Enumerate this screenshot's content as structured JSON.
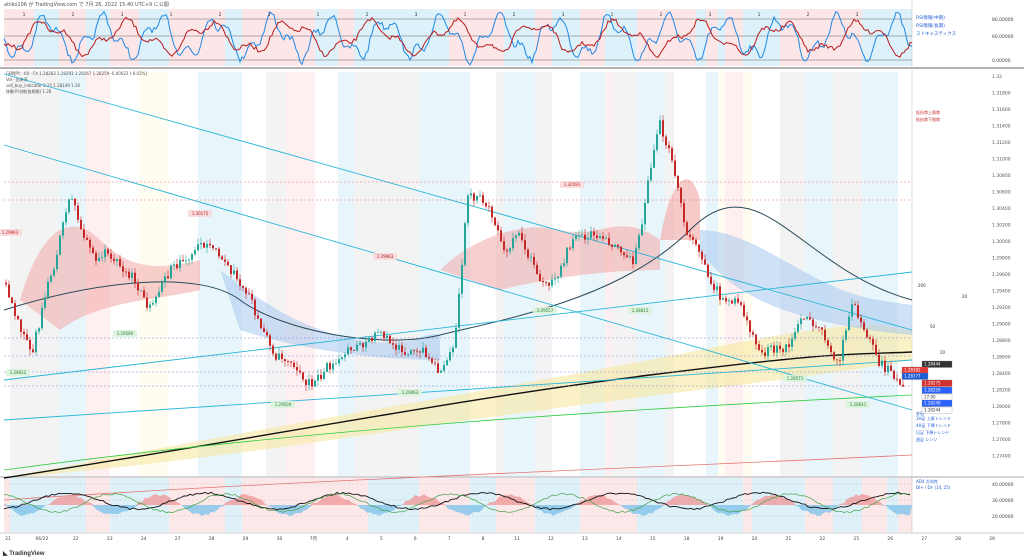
{
  "header": {
    "author_line": "ahiko106 が TradingView.com で 7月 26, 2022 15:40 UTC+9 に公開"
  },
  "footer": {
    "logo_text": "TradingView"
  },
  "colors": {
    "candle_up": "#26a69a",
    "candle_down": "#c62828",
    "rsi_red": "#b71c1c",
    "rsi_blue": "#1e88e5",
    "bg_pink": "#fde2e4",
    "bg_blue": "#d6eef8",
    "bg_grey": "#e9e9e9",
    "bg_yellow": "#fffbe6",
    "ma_black": "#111111",
    "trend_cyan": "#29b6d8",
    "price_box_red": "#e53935",
    "price_box_blue": "#1e5bd6"
  },
  "top_panel": {
    "right_values": [
      "80.00000",
      "60.00000",
      "0.00000"
    ],
    "legend": [
      "RSI情報(中期)",
      "RSI情報(長期)",
      "ストキャスティクス"
    ],
    "top_numbers": [
      "1",
      "2",
      "3",
      "1",
      "2",
      "3",
      "1",
      "2",
      "3",
      "1",
      "2",
      "3",
      "1",
      "2",
      "3",
      "1",
      "2",
      "3"
    ]
  },
  "main_panel": {
    "legend_lines": [
      "GBPJPY · 60 · FX  1.28283  1.28293  1.28167  1.28259  -0.00023 (-0.02%)",
      "Vol · 出来高",
      "sell_buy_indicator  0.15  1.28149  1.26",
      "移動平均線(各期間)  1.28"
    ],
    "price_axis": [
      "1.32",
      "1.31800",
      "1.31600",
      "1.31400",
      "1.31200",
      "1.31000",
      "1.30800",
      "1.30600",
      "1.30400",
      "1.30200",
      "1.30000",
      "1.29800",
      "1.29600",
      "1.29400",
      "1.29200",
      "1.29000",
      "1.28800",
      "1.28600",
      "1.28400",
      "1.28200",
      "1.28000",
      "1.27800",
      "1.27600",
      "1.27400"
    ],
    "price_labels": [
      {
        "text": "1.29963"
      },
      {
        "text": "1.30175"
      },
      {
        "text": "1.29963"
      },
      {
        "text": "1.30591"
      },
      {
        "text": "1.29580"
      },
      {
        "text": "1.29557"
      },
      {
        "text": "1.29504"
      },
      {
        "text": "1.29063"
      },
      {
        "text": "1.28815"
      },
      {
        "text": "1.28571"
      },
      {
        "text": "1.28641"
      },
      {
        "text": "1.28022"
      }
    ],
    "right_boxes": [
      {
        "text": "1.28444",
        "kind": "dark"
      },
      {
        "text": "1.28382",
        "kind": "red"
      },
      {
        "text": "1.28377",
        "kind": "blue"
      },
      {
        "text": "1.28275",
        "kind": "red2"
      },
      {
        "text": "1.28259",
        "kind": "blue2"
      },
      {
        "text": "17:00",
        "kind": "white"
      },
      {
        "text": "1.28249",
        "kind": "blue2"
      },
      {
        "text": "1.28244",
        "kind": "white"
      }
    ],
    "right_notes": [
      "抵抗帯上限帯",
      "抵抗帯下限帯",
      "1H足 上昇トレンド",
      "4H足 下降トレンド",
      "日足 下降トレンド",
      "週足 レンジ"
    ],
    "channel_labels": [
      "200",
      "20",
      "50",
      "20",
      "200"
    ],
    "extra_label": "安値"
  },
  "bottom_panel": {
    "right_values": [
      "40.00000",
      "30.00000",
      "20.00000"
    ],
    "legend": [
      "ADX 方向性",
      "DI+ / DI- (14, 25)"
    ]
  },
  "x_axis": {
    "labels": [
      "21",
      "06/22",
      "22",
      "23",
      "24",
      "27",
      "28",
      "29",
      "30",
      "7月",
      "4",
      "5",
      "6",
      "7",
      "8",
      "11",
      "12",
      "13",
      "14",
      "15",
      "18",
      "19",
      "20",
      "21",
      "22",
      "25",
      "26",
      "27",
      "28",
      "29"
    ]
  },
  "chart_data": {
    "type": "line",
    "title": "",
    "xlabel": "",
    "ylabel": "",
    "ylim": [
      1.273,
      1.32
    ],
    "note": "Hourly candlestick chart; approximate close-path (index → price)",
    "series": [
      {
        "values": [
          1.2955,
          1.2905,
          1.287,
          1.2935,
          1.299,
          1.306,
          1.301,
          1.2985,
          1.299,
          1.297,
          1.296,
          1.293,
          1.2945,
          1.2975,
          1.298,
          1.2995,
          1.3005,
          1.2975,
          1.296,
          1.294,
          1.29,
          1.287,
          1.286,
          1.2845,
          1.2835,
          1.2855,
          1.287,
          1.288,
          1.2885,
          1.2895,
          1.289,
          1.287,
          1.288,
          1.287,
          1.285,
          1.288,
          1.305,
          1.306,
          1.303,
          1.299,
          1.301,
          1.298,
          1.295,
          1.296,
          1.3,
          1.301,
          1.301,
          1.3,
          1.299,
          1.2975,
          1.306,
          1.314,
          1.31,
          1.302,
          1.299,
          1.296,
          1.293,
          1.294,
          1.29,
          1.287,
          1.288,
          1.288,
          1.291,
          1.291,
          1.289,
          1.286,
          1.2935,
          1.29,
          1.2865,
          1.285,
          1.2838
        ]
      }
    ]
  }
}
